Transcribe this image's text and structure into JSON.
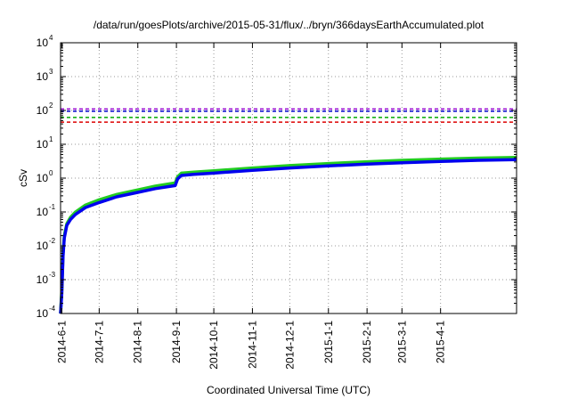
{
  "chart_data": {
    "type": "line",
    "title": "/data/run/goesPlots/archive/2015-05-31/flux/../bryn/366daysEarthAccumulated.plot",
    "xlabel": "Coordinated Universal Time (UTC)",
    "ylabel": "cSv",
    "y_scale": "log",
    "ylim": [
      0.0001,
      10000
    ],
    "xlim": [
      "2014-05-31",
      "2015-06-01"
    ],
    "grid": true,
    "y_ticks": [
      {
        "mantissa": "10",
        "exp": "-4",
        "value": 0.0001
      },
      {
        "mantissa": "10",
        "exp": "-3",
        "value": 0.001
      },
      {
        "mantissa": "10",
        "exp": "-2",
        "value": 0.01
      },
      {
        "mantissa": "10",
        "exp": "-1",
        "value": 0.1
      },
      {
        "mantissa": "10",
        "exp": "0",
        "value": 1
      },
      {
        "mantissa": "10",
        "exp": "1",
        "value": 10
      },
      {
        "mantissa": "10",
        "exp": "2",
        "value": 100
      },
      {
        "mantissa": "10",
        "exp": "3",
        "value": 1000
      },
      {
        "mantissa": "10",
        "exp": "4",
        "value": 10000
      }
    ],
    "x_ticks": [
      {
        "label": "2014-6-1",
        "date": "2014-06-01"
      },
      {
        "label": "2014-7-1",
        "date": "2014-07-01"
      },
      {
        "label": "2014-8-1",
        "date": "2014-08-01"
      },
      {
        "label": "2014-9-1",
        "date": "2014-09-01"
      },
      {
        "label": "2014-10-1",
        "date": "2014-10-01"
      },
      {
        "label": "2014-11-1",
        "date": "2014-11-01"
      },
      {
        "label": "2014-12-1",
        "date": "2014-12-01"
      },
      {
        "label": "2015-1-1",
        "date": "2015-01-01"
      },
      {
        "label": "2015-2-1",
        "date": "2015-02-01"
      },
      {
        "label": "2015-3-1",
        "date": "2015-03-01"
      },
      {
        "label": "2015-4-1",
        "date": "2015-04-01"
      }
    ],
    "reference_lines": [
      {
        "value": 110,
        "color": "#9400d3",
        "style": "dashed"
      },
      {
        "value": 95,
        "color": "#0000cc",
        "style": "dashed"
      },
      {
        "value": 62,
        "color": "#00aa00",
        "style": "dashed"
      },
      {
        "value": 45,
        "color": "#dd0000",
        "style": "dashed"
      }
    ],
    "series": [
      {
        "color": "#22cc22",
        "points": [
          [
            "2014-05-31",
            0.0001
          ],
          [
            "2014-06-01",
            0.0005
          ],
          [
            "2014-06-02",
            0.006
          ],
          [
            "2014-06-03",
            0.02
          ],
          [
            "2014-06-05",
            0.045
          ],
          [
            "2014-06-08",
            0.07
          ],
          [
            "2014-06-12",
            0.1
          ],
          [
            "2014-06-20",
            0.16
          ],
          [
            "2014-07-01",
            0.23
          ],
          [
            "2014-07-15",
            0.33
          ],
          [
            "2014-08-01",
            0.45
          ],
          [
            "2014-08-15",
            0.58
          ],
          [
            "2014-08-31",
            0.72
          ],
          [
            "2014-09-02",
            1.1
          ],
          [
            "2014-09-05",
            1.4
          ],
          [
            "2014-09-15",
            1.5
          ],
          [
            "2014-10-01",
            1.65
          ],
          [
            "2014-11-01",
            2.0
          ],
          [
            "2014-12-01",
            2.35
          ],
          [
            "2015-01-01",
            2.7
          ],
          [
            "2015-02-01",
            3.05
          ],
          [
            "2015-03-01",
            3.35
          ],
          [
            "2015-04-01",
            3.65
          ],
          [
            "2015-05-01",
            3.9
          ],
          [
            "2015-06-01",
            4.1
          ]
        ]
      },
      {
        "color": "#0000ee",
        "points": [
          [
            "2014-05-31",
            0.0001
          ],
          [
            "2014-06-01",
            0.0004
          ],
          [
            "2014-06-02",
            0.005
          ],
          [
            "2014-06-03",
            0.017
          ],
          [
            "2014-06-05",
            0.04
          ],
          [
            "2014-06-08",
            0.06
          ],
          [
            "2014-06-12",
            0.085
          ],
          [
            "2014-06-20",
            0.135
          ],
          [
            "2014-07-01",
            0.19
          ],
          [
            "2014-07-15",
            0.28
          ],
          [
            "2014-08-01",
            0.38
          ],
          [
            "2014-08-15",
            0.49
          ],
          [
            "2014-08-31",
            0.6
          ],
          [
            "2014-09-02",
            0.95
          ],
          [
            "2014-09-05",
            1.2
          ],
          [
            "2014-09-15",
            1.3
          ],
          [
            "2014-10-01",
            1.4
          ],
          [
            "2014-11-01",
            1.7
          ],
          [
            "2014-12-01",
            2.0
          ],
          [
            "2015-01-01",
            2.3
          ],
          [
            "2015-02-01",
            2.6
          ],
          [
            "2015-03-01",
            2.85
          ],
          [
            "2015-04-01",
            3.1
          ],
          [
            "2015-05-01",
            3.35
          ],
          [
            "2015-06-01",
            3.5
          ]
        ]
      }
    ]
  }
}
